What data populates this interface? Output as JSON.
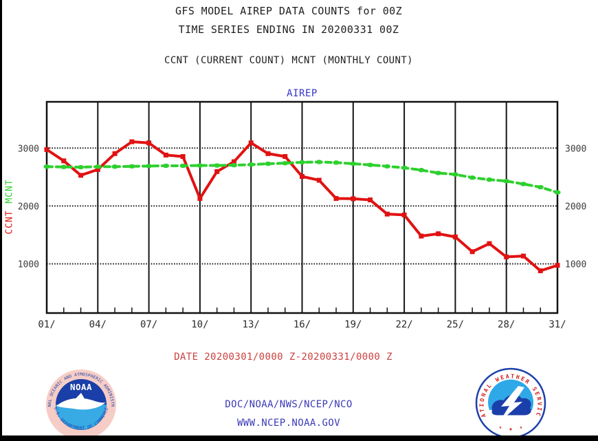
{
  "header": {
    "title_line1": "GFS MODEL AIREP DATA COUNTS for 00Z",
    "title_line2": "TIME SERIES ENDING IN 20200331 00Z",
    "legend_line": "CCNT (CURRENT COUNT) MCNT (MONTHLY COUNT)"
  },
  "axis": {
    "left_rotated_label_green": "MCNT",
    "left_rotated_label_red": "CCNT"
  },
  "footer": {
    "date_range": "DATE 20200301/0000 Z-20200331/0000 Z",
    "org_line": "DOC/NOAA/NWS/NCEP/NCO",
    "url_line": "WWW.NCEP.NOAA.GOV"
  },
  "logos": {
    "noaa": {
      "name": "NOAA",
      "ring_top": "NATIONAL OCEANIC AND ATMOSPHERIC ADMINISTRATION",
      "ring_bottom": "U.S. DEPARTMENT OF COMMERCE"
    },
    "nws": {
      "ring": "NATIONAL WEATHER SERVICE"
    }
  },
  "colors": {
    "ccnt_red": "#e11212",
    "mcnt_green": "#2ed02e",
    "accent_blue": "#3a3ab8",
    "date_red": "#cc4040"
  },
  "chart_data": {
    "type": "line",
    "title": "AIREP",
    "xlabel": "",
    "ylabel": "",
    "x": [
      1,
      2,
      3,
      4,
      5,
      6,
      7,
      8,
      9,
      10,
      11,
      12,
      13,
      14,
      15,
      16,
      17,
      18,
      19,
      20,
      21,
      22,
      23,
      24,
      25,
      26,
      27,
      28,
      29,
      30,
      31
    ],
    "x_major_ticks": [
      1,
      4,
      7,
      10,
      13,
      16,
      19,
      22,
      25,
      28,
      31
    ],
    "x_tick_labels": [
      "01/",
      "04/",
      "07/",
      "10/",
      "13/",
      "16/",
      "19/",
      "22/",
      "25/",
      "28/",
      "31/"
    ],
    "y_ticks": [
      1000,
      2000,
      3000
    ],
    "ylim": [
      150,
      3800
    ],
    "grid": true,
    "legend_position": "none",
    "series": [
      {
        "name": "CCNT",
        "label": "CCNT (CURRENT COUNT)",
        "color": "#e11212",
        "line_style": "solid",
        "marker": "square",
        "values": [
          2975,
          2780,
          2530,
          2630,
          2905,
          3110,
          3090,
          2880,
          2855,
          2130,
          2595,
          2765,
          3090,
          2905,
          2855,
          2510,
          2445,
          2130,
          2125,
          2105,
          1860,
          1845,
          1480,
          1520,
          1465,
          1210,
          1350,
          1120,
          1135,
          880,
          975
        ]
      },
      {
        "name": "MCNT",
        "label": "MCNT (MONTHLY COUNT)",
        "color": "#2ed02e",
        "line_style": "dashed",
        "marker": "ellipse",
        "values": [
          2680,
          2675,
          2670,
          2680,
          2680,
          2685,
          2690,
          2695,
          2695,
          2700,
          2700,
          2705,
          2715,
          2730,
          2740,
          2755,
          2760,
          2750,
          2730,
          2710,
          2685,
          2660,
          2620,
          2570,
          2545,
          2490,
          2455,
          2430,
          2380,
          2325,
          2235
        ]
      }
    ]
  }
}
